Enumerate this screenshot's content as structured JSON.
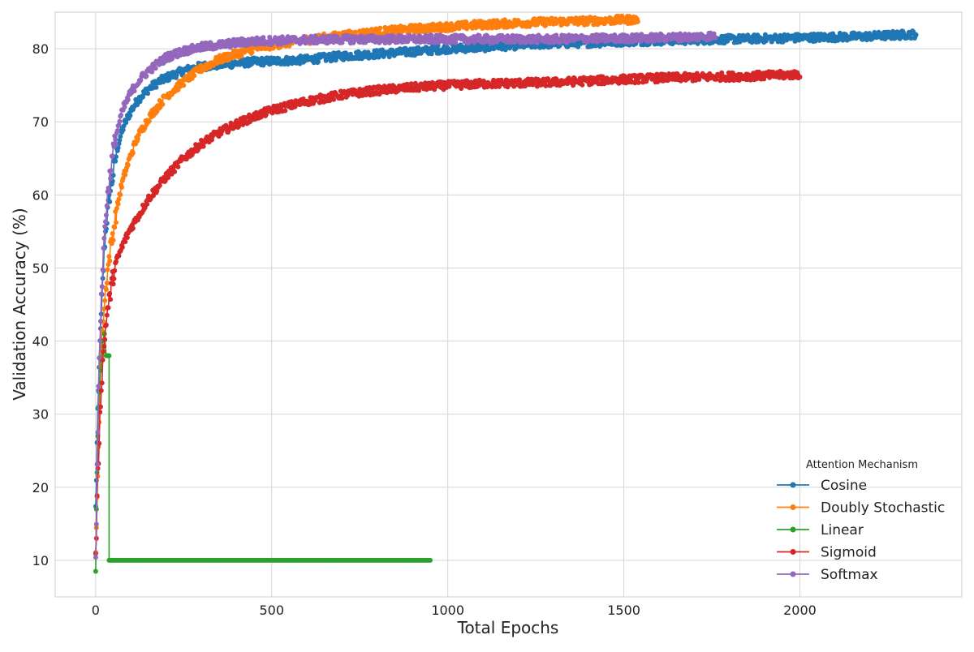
{
  "chart_data": {
    "type": "line",
    "title": "",
    "xlabel": "Total Epochs",
    "ylabel": "Validation Accuracy (%)",
    "xlim": [
      -115,
      2460
    ],
    "ylim": [
      5,
      85
    ],
    "x_ticks": [
      0,
      500,
      1000,
      1500,
      2000
    ],
    "y_ticks": [
      10,
      20,
      30,
      40,
      50,
      60,
      70,
      80
    ],
    "grid": true,
    "legend": {
      "title": "Attention Mechanism",
      "placement": "lower-right",
      "entries": [
        "Cosine",
        "Doubly Stochastic",
        "Linear",
        "Sigmoid",
        "Softmax"
      ]
    },
    "series": [
      {
        "name": "Cosine",
        "color": "#1f77b4",
        "x": [
          0,
          5,
          10,
          15,
          20,
          25,
          30,
          40,
          50,
          60,
          70,
          80,
          100,
          120,
          150,
          180,
          200,
          250,
          300,
          350,
          400,
          450,
          500,
          600,
          700,
          800,
          900,
          1000,
          1100,
          1200,
          1300,
          1400,
          1500,
          1600,
          1700,
          1800,
          1900,
          2000,
          2100,
          2200,
          2330
        ],
        "y": [
          17,
          28,
          36,
          42,
          48,
          53,
          56,
          60,
          63,
          66,
          68,
          69.5,
          71.5,
          73,
          74.5,
          75.5,
          76,
          77,
          77.6,
          77.8,
          78,
          78.2,
          78.3,
          78.5,
          79,
          79.3,
          79.6,
          80,
          80.2,
          80.5,
          80.7,
          80.8,
          81,
          81.1,
          81.2,
          81.3,
          81.4,
          81.5,
          81.6,
          81.7,
          82
        ]
      },
      {
        "name": "Doubly Stochastic",
        "color": "#ff7f0e",
        "x": [
          0,
          5,
          10,
          15,
          20,
          25,
          30,
          40,
          50,
          60,
          70,
          80,
          100,
          120,
          150,
          200,
          250,
          300,
          350,
          400,
          450,
          500,
          600,
          700,
          800,
          900,
          1000,
          1100,
          1200,
          1300,
          1400,
          1540
        ],
        "y": [
          10,
          20,
          30,
          38,
          42,
          45,
          48,
          52,
          55,
          58,
          60.5,
          62.5,
          65.5,
          68,
          70.5,
          73.5,
          75.5,
          77.3,
          78.5,
          79.3,
          80,
          80.5,
          81.2,
          81.8,
          82.3,
          82.7,
          83,
          83.3,
          83.5,
          83.7,
          83.8,
          84
        ]
      },
      {
        "name": "Linear",
        "color": "#2ca02c",
        "x": [
          0,
          2,
          4,
          6,
          8,
          10,
          14,
          20,
          25,
          30,
          35,
          38,
          38,
          40,
          100,
          200,
          300,
          400,
          500,
          600,
          700,
          800,
          950
        ],
        "y": [
          8.5,
          17,
          22,
          27,
          31,
          33,
          36,
          40,
          41,
          38,
          38,
          38,
          10,
          10,
          10,
          10,
          10,
          10,
          10,
          10,
          10,
          10,
          10
        ]
      },
      {
        "name": "Sigmoid",
        "color": "#d62728",
        "x": [
          0,
          5,
          10,
          15,
          20,
          25,
          30,
          40,
          50,
          60,
          80,
          100,
          120,
          150,
          200,
          250,
          300,
          350,
          400,
          450,
          500,
          600,
          700,
          800,
          900,
          1000,
          1100,
          1200,
          1300,
          1400,
          1500,
          1600,
          1700,
          1800,
          1900,
          2000
        ],
        "y": [
          10,
          20,
          27,
          33,
          37,
          40,
          43,
          46,
          49,
          51,
          53.5,
          55.5,
          57,
          59.5,
          62.5,
          65,
          67,
          68.5,
          69.7,
          70.7,
          71.6,
          72.8,
          73.7,
          74.3,
          74.7,
          75,
          75.2,
          75.3,
          75.4,
          75.6,
          75.8,
          76,
          76.1,
          76.2,
          76.3,
          76.5
        ]
      },
      {
        "name": "Softmax",
        "color": "#9467bd",
        "x": [
          0,
          5,
          10,
          15,
          20,
          25,
          30,
          40,
          50,
          60,
          70,
          80,
          100,
          120,
          150,
          200,
          250,
          300,
          350,
          400,
          450,
          500,
          600,
          700,
          800,
          900,
          1000,
          1100,
          1200,
          1300,
          1400,
          1500,
          1600,
          1700,
          1760
        ],
        "y": [
          10,
          25,
          38,
          45,
          50,
          55,
          58,
          62.5,
          66,
          68.5,
          70.5,
          72,
          74,
          75.5,
          77,
          78.8,
          79.7,
          80.2,
          80.5,
          80.8,
          81,
          81.1,
          81.2,
          81.3,
          81.3,
          81.3,
          81.3,
          81.3,
          81.3,
          81.3,
          81.4,
          81.4,
          81.5,
          81.6,
          81.8
        ]
      }
    ]
  }
}
